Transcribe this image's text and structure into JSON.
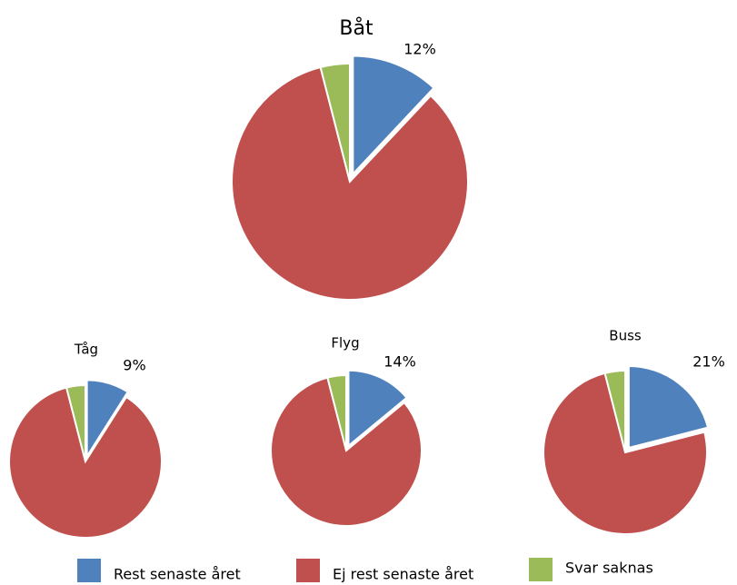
{
  "chart_data": [
    {
      "type": "pie",
      "title": "Båt",
      "categories": [
        "Rest senaste året",
        "Ej rest senaste året",
        "Svar saknas"
      ],
      "values": [
        12,
        84,
        4
      ],
      "value_labels": [
        "12%",
        null,
        null
      ],
      "colors": [
        "#4f81bd",
        "#c0504d",
        "#9bbb59"
      ]
    },
    {
      "type": "pie",
      "title": "Tåg",
      "categories": [
        "Rest senaste året",
        "Ej rest senaste året",
        "Svar saknas"
      ],
      "values": [
        9,
        87,
        4
      ],
      "value_labels": [
        "9%",
        null,
        null
      ],
      "colors": [
        "#4f81bd",
        "#c0504d",
        "#9bbb59"
      ]
    },
    {
      "type": "pie",
      "title": "Flyg",
      "categories": [
        "Rest senaste året",
        "Ej rest senaste året",
        "Svar saknas"
      ],
      "values": [
        14,
        82,
        4
      ],
      "value_labels": [
        "14%",
        null,
        null
      ],
      "colors": [
        "#4f81bd",
        "#c0504d",
        "#9bbb59"
      ]
    },
    {
      "type": "pie",
      "title": "Buss",
      "categories": [
        "Rest senaste året",
        "Ej rest senaste året",
        "Svar saknas"
      ],
      "values": [
        21,
        75,
        4
      ],
      "value_labels": [
        "21%",
        null,
        null
      ],
      "colors": [
        "#4f81bd",
        "#c0504d",
        "#9bbb59"
      ]
    }
  ]
}
